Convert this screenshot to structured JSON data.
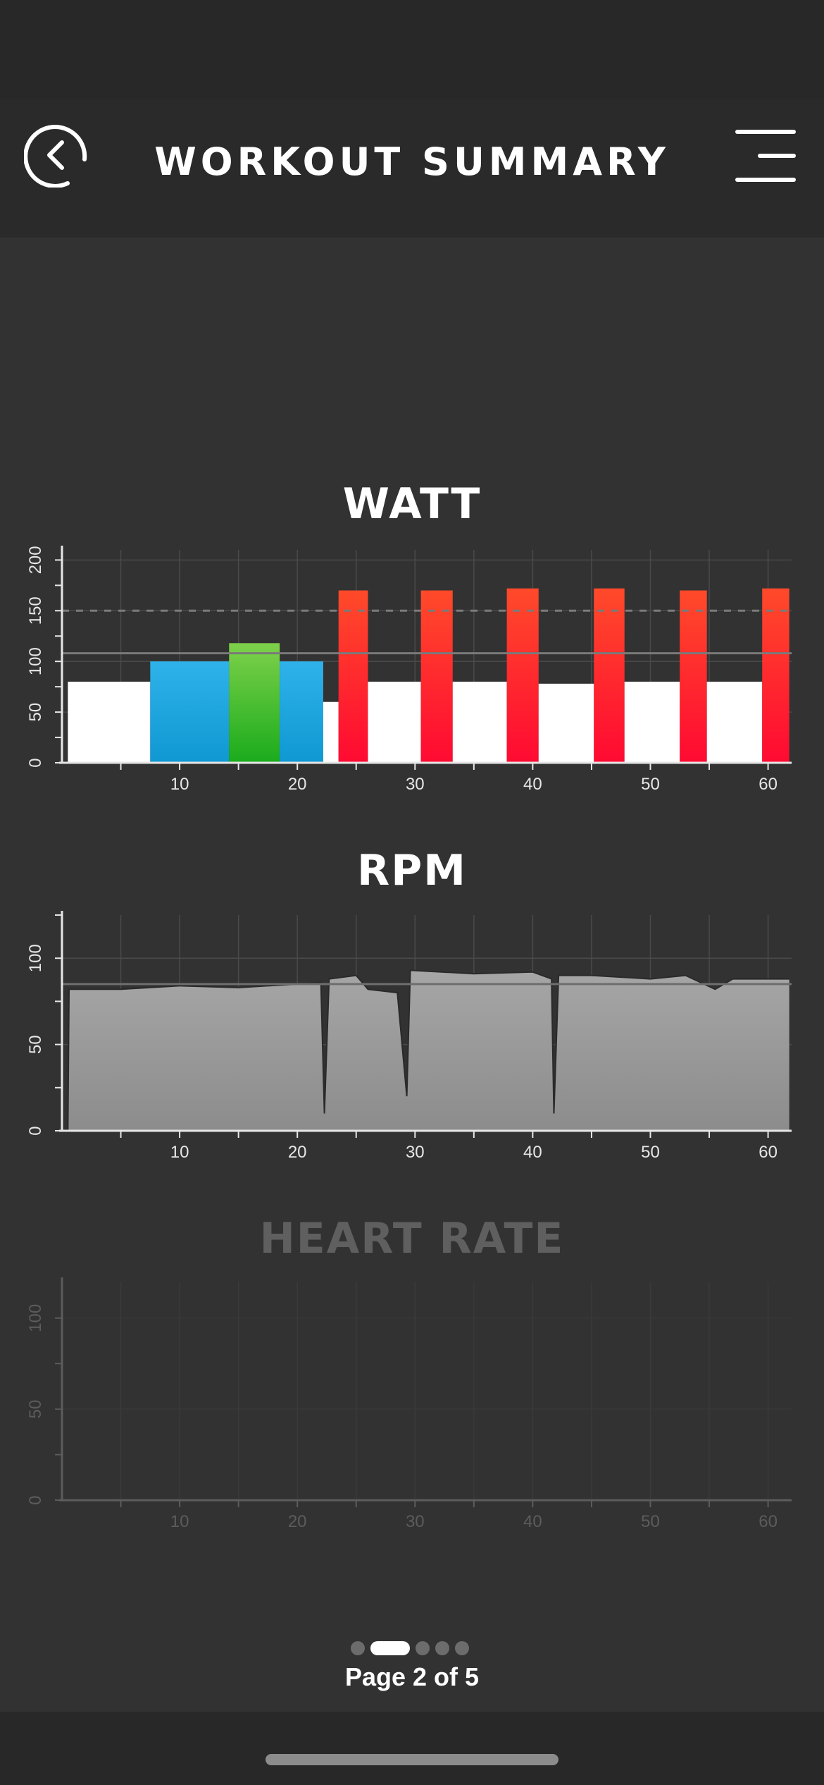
{
  "header": {
    "title": "WORKOUT SUMMARY"
  },
  "icons": {
    "back": "back-arrow-circle-icon",
    "menu": "hamburger-menu-icon"
  },
  "colors": {
    "background": "#323232",
    "warmup": "#ffffff",
    "zone_blue": "#1aa7e0",
    "zone_green": "#3fbf30",
    "zone_red": "#ff2a22",
    "rpm_fill": "#9c9c9c"
  },
  "chart_data": [
    {
      "type": "bar",
      "title": "WATT",
      "xlabel": "",
      "ylabel": "",
      "xlim": [
        0,
        62
      ],
      "ylim": [
        0,
        210
      ],
      "x_ticks": [
        10,
        20,
        30,
        40,
        50,
        60
      ],
      "y_ticks": [
        0,
        50,
        100,
        150,
        200
      ],
      "reference_lines": [
        {
          "value": 150,
          "style": "dashed"
        },
        {
          "value": 108,
          "style": "solid"
        }
      ],
      "segments": [
        {
          "start": 0.5,
          "end": 7.5,
          "value": 80,
          "zone": "white"
        },
        {
          "start": 7.5,
          "end": 14.2,
          "value": 100,
          "zone": "blue"
        },
        {
          "start": 14.2,
          "end": 18.5,
          "value": 118,
          "zone": "green"
        },
        {
          "start": 18.5,
          "end": 22.2,
          "value": 100,
          "zone": "blue"
        },
        {
          "start": 22.2,
          "end": 23.5,
          "value": 60,
          "zone": "white"
        },
        {
          "start": 23.5,
          "end": 26,
          "value": 170,
          "zone": "red"
        },
        {
          "start": 26,
          "end": 30.5,
          "value": 80,
          "zone": "white"
        },
        {
          "start": 30.5,
          "end": 33.2,
          "value": 170,
          "zone": "red"
        },
        {
          "start": 33.2,
          "end": 37.8,
          "value": 80,
          "zone": "white"
        },
        {
          "start": 37.8,
          "end": 40.5,
          "value": 172,
          "zone": "red"
        },
        {
          "start": 40.5,
          "end": 45.2,
          "value": 78,
          "zone": "white"
        },
        {
          "start": 45.2,
          "end": 47.8,
          "value": 172,
          "zone": "red"
        },
        {
          "start": 47.8,
          "end": 52.5,
          "value": 80,
          "zone": "white"
        },
        {
          "start": 52.5,
          "end": 54.8,
          "value": 170,
          "zone": "red"
        },
        {
          "start": 54.8,
          "end": 59.5,
          "value": 80,
          "zone": "white"
        },
        {
          "start": 59.5,
          "end": 61.8,
          "value": 172,
          "zone": "red"
        }
      ]
    },
    {
      "type": "area",
      "title": "RPM",
      "xlabel": "",
      "ylabel": "",
      "xlim": [
        0,
        62
      ],
      "ylim": [
        0,
        125
      ],
      "x_ticks": [
        10,
        20,
        30,
        40,
        50,
        60
      ],
      "y_ticks": [
        0,
        50,
        100
      ],
      "reference_lines": [
        {
          "value": 85,
          "style": "solid"
        }
      ],
      "points": [
        [
          0.5,
          0
        ],
        [
          0.6,
          82
        ],
        [
          5,
          82
        ],
        [
          10,
          84
        ],
        [
          15,
          83
        ],
        [
          20,
          85
        ],
        [
          22,
          86
        ],
        [
          22.3,
          10
        ],
        [
          22.7,
          88
        ],
        [
          25,
          90
        ],
        [
          26,
          82
        ],
        [
          28.5,
          80
        ],
        [
          29.3,
          20
        ],
        [
          29.6,
          93
        ],
        [
          35,
          91
        ],
        [
          40,
          92
        ],
        [
          41.6,
          88
        ],
        [
          41.8,
          10
        ],
        [
          42.2,
          90
        ],
        [
          45,
          90
        ],
        [
          50,
          88
        ],
        [
          53,
          90
        ],
        [
          55.5,
          82
        ],
        [
          57,
          88
        ],
        [
          61.8,
          88
        ]
      ]
    },
    {
      "type": "line",
      "title": "HEART RATE",
      "xlabel": "",
      "ylabel": "",
      "xlim": [
        0,
        62
      ],
      "ylim": [
        0,
        120
      ],
      "x_ticks": [
        10,
        20,
        30,
        40,
        50,
        60
      ],
      "y_ticks": [
        0,
        50,
        100
      ],
      "points": []
    }
  ],
  "pager": {
    "count": 5,
    "current": 2,
    "label": "Page 2 of 5"
  }
}
